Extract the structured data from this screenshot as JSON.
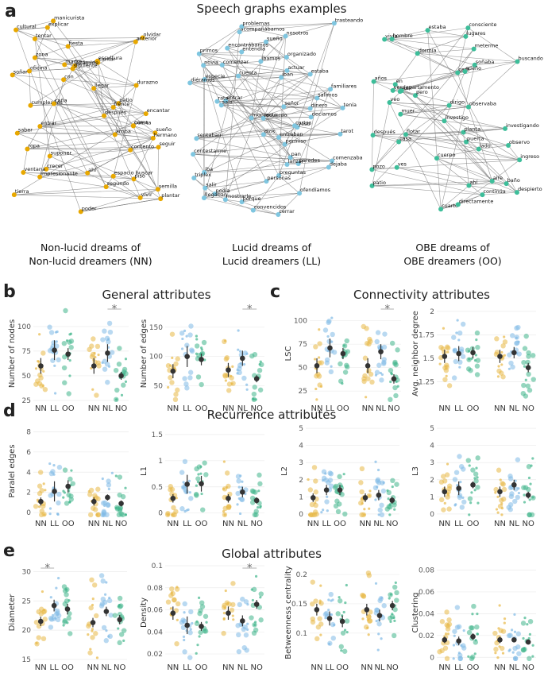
{
  "figure": {
    "title_a": "Speech graphs examples",
    "colors": {
      "NN": "#E8B845",
      "LL": "#7FB9E6",
      "OO": "#3FB58A",
      "NL": "#7FB9E6",
      "NO": "#3FB58A",
      "mean": "#333333"
    },
    "panels": {
      "a": "a",
      "b": "b",
      "c": "c",
      "d": "d",
      "e": "e"
    }
  },
  "graphs": [
    {
      "caption_line1": "Non-lucid dreams of",
      "caption_line2": "Non-lucid dreamers (NN)",
      "node_color": "#E8A800",
      "words": [
        "manicurista",
        "explicar",
        "cultural",
        "tentar",
        "olvidar",
        "anterior",
        "fiesta",
        "zona",
        "cantar",
        "madre",
        "escultura",
        "pirámide",
        "siguiente",
        "oficina",
        "soñar",
        "con",
        "durazno",
        "llegar",
        "patio",
        "cumpleaños",
        "caña",
        "encantar",
        "frente",
        "después",
        "entrar",
        "puerta",
        "cama",
        "sueño",
        "saber",
        "arriba",
        "hermano",
        "ropa",
        "seguir",
        "contento",
        "suponer",
        "crecer",
        "ahí",
        "impresionante",
        "ventana",
        "espacio buscar",
        "piso",
        "segundo",
        "vivir",
        "semilla",
        "tierra",
        "plantar",
        "poder"
      ]
    },
    {
      "caption_line1": "Lucid dreams of",
      "caption_line2": "Lucid dreamers (LL)",
      "node_color": "#7FC6E0",
      "words": [
        "acompañábamos",
        "trasteando",
        "problemas",
        "nosotros",
        "sueño",
        "encontrábamos",
        "entendía",
        "primos",
        "organizado",
        "íbamos",
        "novia",
        "comenzar",
        "estaba",
        "actuar",
        "especie",
        "cuenta",
        "diéramos",
        "iban",
        "familiares",
        "salimos",
        "entrar",
        "rato",
        "dinero",
        "señor",
        "sala",
        "tenía",
        "momento",
        "decíamos",
        "recuerdo",
        "yeso",
        "cartas",
        "sentaban",
        "dios",
        "tarot",
        "entraban",
        "permiso",
        "pan",
        "comenzaba",
        "contestarme",
        "paredes",
        "lanzar",
        "iba",
        "dejaba",
        "preguntas",
        "personas",
        "salir",
        "triplex",
        "podía",
        "llegaban",
        "ofendíamos",
        "porque",
        "mostrarle",
        "convencidos",
        "cerrar"
      ]
    },
    {
      "caption_line1": "OBE dreams of",
      "caption_line2": "OBE dreamers (OO)",
      "node_color": "#3DBE9A",
      "words": [
        "estaba",
        "lugares",
        "consciente",
        "vivía",
        "hombre",
        "meterme",
        "dormía",
        "buscando",
        "soñaba",
        "cara",
        "sueño",
        "años",
        "en",
        "ver",
        "sutil",
        "pero",
        "departamento",
        "observaba",
        "veo",
        "dirigo",
        "muer",
        "investigo",
        "investigando",
        "planta",
        "flotar",
        "casa",
        "después",
        "puerta",
        "observo",
        "lado",
        "cuerpo",
        "ingreso",
        "pozo",
        "ves",
        "baño",
        "patio",
        "aire",
        "ahí",
        "despierto",
        "continúa",
        "cuarto",
        "directamente"
      ]
    }
  ],
  "sections": {
    "b": "General attributes",
    "c": "Connectivity attributes",
    "d": "Recurrence attributes",
    "e": "Global attributes"
  },
  "chart_data": [
    {
      "type": "scatter",
      "panel": "b",
      "ylabel": "Number of nodes",
      "groups": [
        "NN",
        "LL",
        "OO",
        "NN",
        "NL",
        "NO"
      ],
      "ylim": [
        25,
        120
      ],
      "yticks": [
        25,
        50,
        75,
        100
      ],
      "means": [
        60,
        76,
        72,
        60,
        73,
        50
      ],
      "errors": [
        8,
        10,
        6,
        8,
        9,
        4
      ],
      "significance": {
        "label": "*",
        "between": [
          4,
          5
        ]
      }
    },
    {
      "type": "scatter",
      "panel": "b",
      "ylabel": "Number of edges",
      "groups": [
        "NN",
        "LL",
        "OO",
        "NN",
        "NL",
        "NO"
      ],
      "ylim": [
        25,
        185
      ],
      "yticks": [
        50,
        100,
        150
      ],
      "means": [
        75,
        100,
        95,
        77,
        97,
        62
      ],
      "errors": [
        12,
        18,
        10,
        12,
        13,
        6
      ],
      "significance": {
        "label": "*",
        "between": [
          4,
          5
        ]
      }
    },
    {
      "type": "scatter",
      "panel": "c",
      "ylabel": "LSC",
      "groups": [
        "NN",
        "LL",
        "OO",
        "NN",
        "NL",
        "NO"
      ],
      "ylim": [
        15,
        115
      ],
      "yticks": [
        25,
        50,
        75,
        100
      ],
      "means": [
        52,
        71,
        65,
        52,
        67,
        38
      ],
      "errors": [
        8,
        10,
        6,
        8,
        8,
        5
      ],
      "significance": {
        "label": "*",
        "between": [
          4,
          5
        ]
      }
    },
    {
      "type": "scatter",
      "panel": "c",
      "ylabel": "Avg. neighbor degree",
      "groups": [
        "NN",
        "LL",
        "OO",
        "NN",
        "NL",
        "NO"
      ],
      "ylim": [
        1.05,
        2.05
      ],
      "yticks": [
        1.25,
        1.5,
        1.75,
        2.0
      ],
      "means": [
        1.52,
        1.55,
        1.56,
        1.52,
        1.56,
        1.4
      ],
      "errors": [
        0.07,
        0.08,
        0.06,
        0.07,
        0.06,
        0.05
      ],
      "significance": null
    },
    {
      "type": "scatter",
      "panel": "d",
      "ylabel": "Paralel edges",
      "groups": [
        "NN",
        "LL",
        "OO",
        "NN",
        "NL",
        "NO"
      ],
      "ylim": [
        -0.3,
        8.5
      ],
      "yticks": [
        0,
        2,
        4,
        6,
        8
      ],
      "means": [
        1.1,
        2.1,
        2.6,
        1.1,
        1.5,
        0.9
      ],
      "errors": [
        0.4,
        1.0,
        0.6,
        0.4,
        0.3,
        0.3
      ],
      "significance": null
    },
    {
      "type": "scatter",
      "panel": "d",
      "ylabel": "L1",
      "groups": [
        "NN",
        "LL",
        "OO",
        "NN",
        "NL",
        "NO"
      ],
      "ylim": [
        -0.05,
        1.65
      ],
      "yticks": [
        0.0,
        0.5,
        1.0,
        1.5
      ],
      "means": [
        0.28,
        0.55,
        0.56,
        0.28,
        0.4,
        0.24
      ],
      "errors": [
        0.08,
        0.18,
        0.15,
        0.08,
        0.1,
        0.06
      ],
      "significance": null
    },
    {
      "type": "scatter",
      "panel": "d",
      "ylabel": "L2",
      "groups": [
        "NN",
        "LL",
        "OO",
        "NN",
        "NL",
        "NO"
      ],
      "ylim": [
        -0.1,
        5.1
      ],
      "yticks": [
        0,
        1,
        2,
        3,
        4,
        5
      ],
      "means": [
        0.95,
        1.4,
        1.4,
        0.95,
        1.1,
        0.8
      ],
      "errors": [
        0.25,
        0.3,
        0.3,
        0.25,
        0.3,
        0.2
      ],
      "significance": null
    },
    {
      "type": "scatter",
      "panel": "d",
      "ylabel": "L3",
      "groups": [
        "NN",
        "LL",
        "OO",
        "NN",
        "NL",
        "NO"
      ],
      "ylim": [
        -0.1,
        5.1
      ],
      "yticks": [
        0,
        1,
        2,
        3,
        4,
        5
      ],
      "means": [
        1.3,
        1.5,
        1.7,
        1.3,
        1.7,
        1.1
      ],
      "errors": [
        0.3,
        0.4,
        0.2,
        0.3,
        0.3,
        0.2
      ],
      "significance": null
    },
    {
      "type": "scatter",
      "panel": "e",
      "ylabel": "Diameter",
      "groups": [
        "NN",
        "LL",
        "OO",
        "NN",
        "NL",
        "NO"
      ],
      "ylim": [
        15,
        31
      ],
      "yticks": [
        15,
        20,
        25,
        30
      ],
      "means": [
        21.5,
        24.2,
        23.6,
        21.3,
        23.2,
        21.8
      ],
      "errors": [
        0.8,
        1.0,
        0.9,
        0.8,
        0.8,
        0.8
      ],
      "significance": {
        "label": "*",
        "between": [
          0,
          1
        ]
      }
    },
    {
      "type": "scatter",
      "panel": "e",
      "ylabel": "Density",
      "groups": [
        "NN",
        "LL",
        "OO",
        "NN",
        "NL",
        "NO"
      ],
      "ylim": [
        0.015,
        0.1
      ],
      "yticks": [
        0.02,
        0.04,
        0.06,
        0.08,
        0.1
      ],
      "means": [
        0.057,
        0.046,
        0.045,
        0.057,
        0.05,
        0.065
      ],
      "errors": [
        0.006,
        0.008,
        0.004,
        0.006,
        0.005,
        0.004
      ],
      "significance": {
        "label": "*",
        "between": [
          4,
          5
        ]
      }
    },
    {
      "type": "scatter",
      "panel": "e",
      "ylabel": "Betweenness centrality",
      "groups": [
        "NN",
        "LL",
        "OO",
        "NN",
        "NL",
        "NO"
      ],
      "ylim": [
        0.055,
        0.215
      ],
      "yticks": [
        0.1,
        0.15,
        0.2
      ],
      "means": [
        0.14,
        0.125,
        0.12,
        0.14,
        0.13,
        0.147
      ],
      "errors": [
        0.01,
        0.012,
        0.01,
        0.01,
        0.01,
        0.008
      ],
      "significance": null
    },
    {
      "type": "scatter",
      "panel": "e",
      "ylabel": "Clustering",
      "groups": [
        "NN",
        "LL",
        "OO",
        "NN",
        "NL",
        "NO"
      ],
      "ylim": [
        -0.002,
        0.084
      ],
      "yticks": [
        0.0,
        0.02,
        0.04,
        0.06,
        0.08
      ],
      "means": [
        0.016,
        0.015,
        0.019,
        0.016,
        0.016,
        0.014
      ],
      "errors": [
        0.003,
        0.004,
        0.003,
        0.003,
        0.002,
        0.002
      ],
      "significance": null
    }
  ]
}
